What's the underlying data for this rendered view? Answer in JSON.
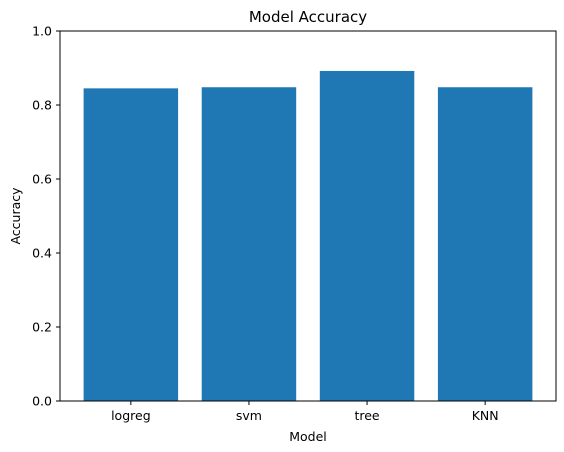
{
  "chart_data": {
    "type": "bar",
    "title": "Model Accuracy",
    "xlabel": "Model",
    "ylabel": "Accuracy",
    "categories": [
      "logreg",
      "svm",
      "tree",
      "KNN"
    ],
    "values": [
      0.845,
      0.848,
      0.892,
      0.848
    ],
    "ylim": [
      0,
      1.0
    ],
    "yticks": [
      0.0,
      0.2,
      0.4,
      0.6,
      0.8,
      1.0
    ],
    "ytick_labels": [
      "0.0",
      "0.2",
      "0.4",
      "0.6",
      "0.8",
      "1.0"
    ],
    "grid": false,
    "bar_color": "#1f77b4"
  }
}
